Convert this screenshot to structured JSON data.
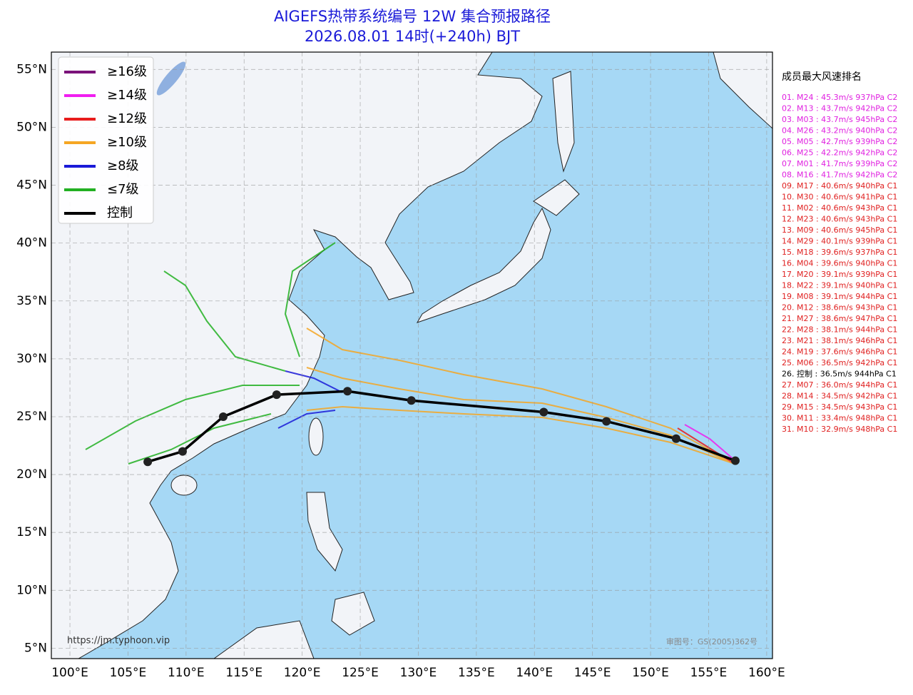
{
  "title": "AIGEFS热带系统编号 12W 集合预报路径",
  "subtitle": "2026.08.01 14时(+240h) BJT",
  "legend": [
    {
      "label": "≥16级",
      "color": "#7a127a"
    },
    {
      "label": "≥14级",
      "color": "#f01ef0"
    },
    {
      "label": "≥12级",
      "color": "#e81c1c"
    },
    {
      "label": "≥10级",
      "color": "#f5a623"
    },
    {
      "label": "≥8级",
      "color": "#1a1ad8"
    },
    {
      "label": "≤7级",
      "color": "#22b022"
    },
    {
      "label": "控制",
      "color": "#000000"
    }
  ],
  "xlim": [
    98.4,
    160.5
  ],
  "ylim": [
    4.1,
    56.5
  ],
  "xticks": [
    {
      "value": 100,
      "label": "100°E"
    },
    {
      "value": 105,
      "label": "105°E"
    },
    {
      "value": 110,
      "label": "110°E"
    },
    {
      "value": 115,
      "label": "115°E"
    },
    {
      "value": 120,
      "label": "120°E"
    },
    {
      "value": 125,
      "label": "125°E"
    },
    {
      "value": 130,
      "label": "130°E"
    },
    {
      "value": 135,
      "label": "135°E"
    },
    {
      "value": 140,
      "label": "140°E"
    },
    {
      "value": 145,
      "label": "145°E"
    },
    {
      "value": 150,
      "label": "150°E"
    },
    {
      "value": 155,
      "label": "155°E"
    },
    {
      "value": 160,
      "label": "160°E"
    }
  ],
  "yticks": [
    {
      "value": 5,
      "label": "5°N"
    },
    {
      "value": 10,
      "label": "10°N"
    },
    {
      "value": 15,
      "label": "15°N"
    },
    {
      "value": 20,
      "label": "20°N"
    },
    {
      "value": 25,
      "label": "25°N"
    },
    {
      "value": 30,
      "label": "30°N"
    },
    {
      "value": 35,
      "label": "35°N"
    },
    {
      "value": 40,
      "label": "40°N"
    },
    {
      "value": 45,
      "label": "45°N"
    },
    {
      "value": 50,
      "label": "50°N"
    },
    {
      "value": 55,
      "label": "55°N"
    }
  ],
  "control_track": {
    "lon": [
      157.3,
      152.2,
      146.2,
      140.8,
      129.4,
      123.9,
      117.8,
      113.2,
      109.7,
      106.7
    ],
    "lat": [
      21.2,
      23.1,
      24.6,
      25.4,
      26.4,
      27.2,
      26.9,
      25.0,
      22.0,
      21.1
    ]
  },
  "ranking": {
    "title": "成员最大风速排名",
    "entries": [
      {
        "text": "01. M24 : 45.3m/s 937hPa C2",
        "color": "#e020e0"
      },
      {
        "text": "02. M13 : 43.7m/s 942hPa C2",
        "color": "#e020e0"
      },
      {
        "text": "03. M03 : 43.7m/s 945hPa C2",
        "color": "#e020e0"
      },
      {
        "text": "04. M26 : 43.2m/s 940hPa C2",
        "color": "#e020e0"
      },
      {
        "text": "05. M05 : 42.7m/s 939hPa C2",
        "color": "#e020e0"
      },
      {
        "text": "06. M25 : 42.2m/s 942hPa C2",
        "color": "#e020e0"
      },
      {
        "text": "07. M01 : 41.7m/s 939hPa C2",
        "color": "#e020e0"
      },
      {
        "text": "08. M16 : 41.7m/s 942hPa C2",
        "color": "#e020e0"
      },
      {
        "text": "09. M17 : 40.6m/s 940hPa C1",
        "color": "#e02020"
      },
      {
        "text": "10. M30 : 40.6m/s 941hPa C1",
        "color": "#e02020"
      },
      {
        "text": "11. M02 : 40.6m/s 943hPa C1",
        "color": "#e02020"
      },
      {
        "text": "12. M23 : 40.6m/s 943hPa C1",
        "color": "#e02020"
      },
      {
        "text": "13. M09 : 40.6m/s 945hPa C1",
        "color": "#e02020"
      },
      {
        "text": "14. M29 : 40.1m/s 939hPa C1",
        "color": "#e02020"
      },
      {
        "text": "15. M18 : 39.6m/s 937hPa C1",
        "color": "#e02020"
      },
      {
        "text": "16. M04 : 39.6m/s 940hPa C1",
        "color": "#e02020"
      },
      {
        "text": "17. M20 : 39.1m/s 939hPa C1",
        "color": "#e02020"
      },
      {
        "text": "18. M22 : 39.1m/s 940hPa C1",
        "color": "#e02020"
      },
      {
        "text": "19. M08 : 39.1m/s 944hPa C1",
        "color": "#e02020"
      },
      {
        "text": "20. M12 : 38.6m/s 943hPa C1",
        "color": "#e02020"
      },
      {
        "text": "21. M27 : 38.6m/s 947hPa C1",
        "color": "#e02020"
      },
      {
        "text": "22. M28 : 38.1m/s 944hPa C1",
        "color": "#e02020"
      },
      {
        "text": "23. M21 : 38.1m/s 946hPa C1",
        "color": "#e02020"
      },
      {
        "text": "24. M19 : 37.6m/s 946hPa C1",
        "color": "#e02020"
      },
      {
        "text": "25. M06 : 36.5m/s 942hPa C1",
        "color": "#e02020"
      },
      {
        "text": "26. 控制 : 36.5m/s 944hPa C1",
        "color": "#000000"
      },
      {
        "text": "27. M07 : 36.0m/s 944hPa C1",
        "color": "#e02020"
      },
      {
        "text": "28. M14 : 34.5m/s 942hPa C1",
        "color": "#e02020"
      },
      {
        "text": "29. M15 : 34.5m/s 943hPa C1",
        "color": "#e02020"
      },
      {
        "text": "30. M11 : 33.4m/s 948hPa C1",
        "color": "#e02020"
      },
      {
        "text": "31. M10 : 32.9m/s 948hPa C1",
        "color": "#e02020"
      }
    ]
  },
  "source": "https://jm.typhoon.vip",
  "map_code": "审图号：GS(2005)362号"
}
